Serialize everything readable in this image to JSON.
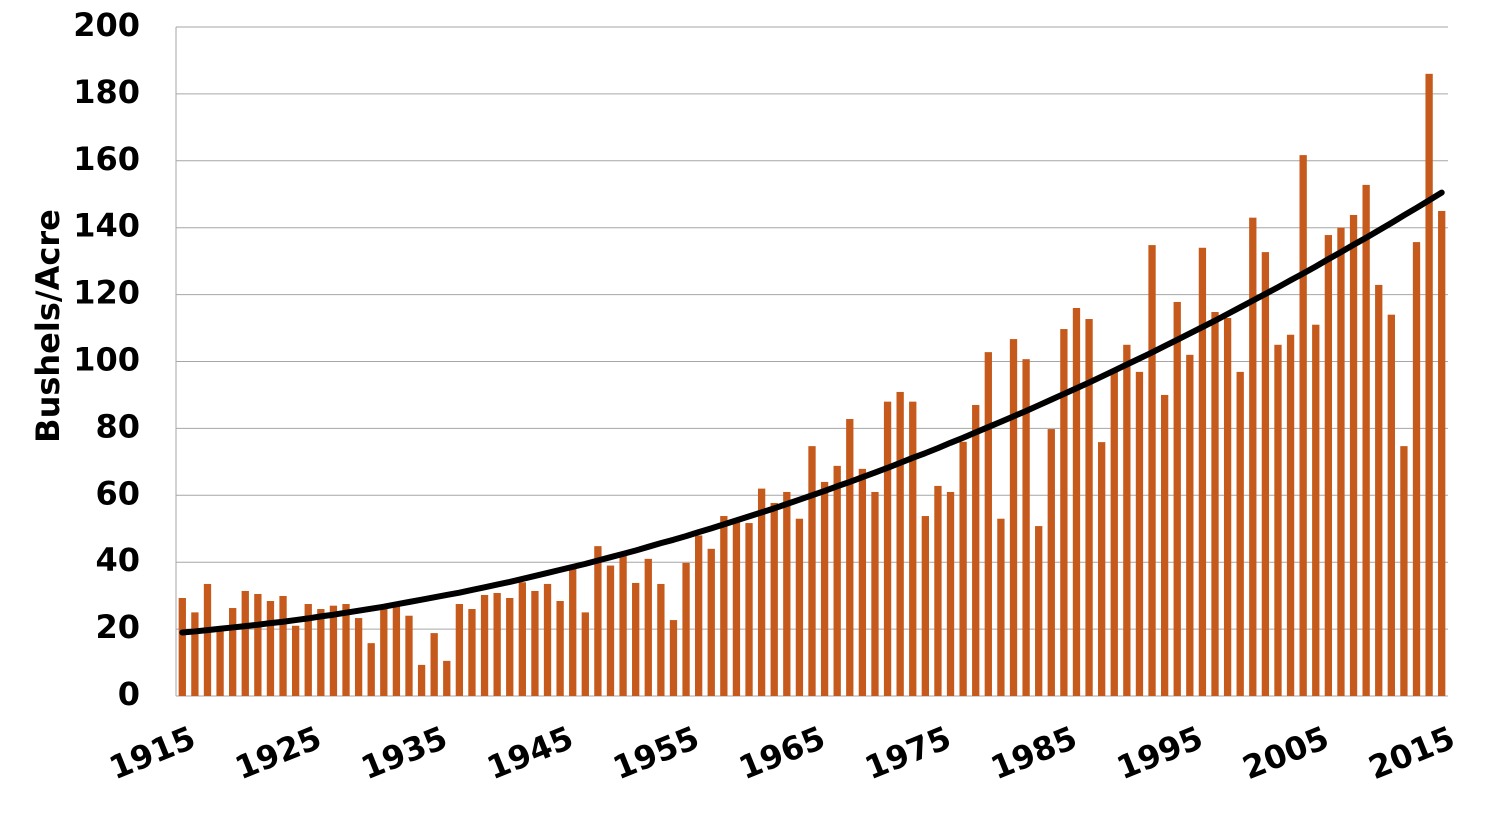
{
  "chart_data": {
    "type": "bar",
    "y_label": "Bushels/Acre",
    "categories": [
      "1915",
      null,
      null,
      null,
      null,
      null,
      null,
      null,
      null,
      null,
      "1925",
      null,
      null,
      null,
      null,
      null,
      null,
      null,
      null,
      null,
      "1935",
      null,
      null,
      null,
      null,
      null,
      null,
      null,
      null,
      null,
      "1945",
      null,
      null,
      null,
      null,
      null,
      null,
      null,
      null,
      null,
      "1955",
      null,
      null,
      null,
      null,
      null,
      null,
      null,
      null,
      null,
      "1965",
      null,
      null,
      null,
      null,
      null,
      null,
      null,
      null,
      null,
      "1975",
      null,
      null,
      null,
      null,
      null,
      null,
      null,
      null,
      null,
      "1985",
      null,
      null,
      null,
      null,
      null,
      null,
      null,
      null,
      null,
      "1995",
      null,
      null,
      null,
      null,
      null,
      null,
      null,
      null,
      null,
      "2005",
      null,
      null,
      null,
      null,
      null,
      null,
      null,
      null,
      null,
      "2015"
    ],
    "series": [
      {
        "type": "bar",
        "color": "#c55a1c",
        "values": [
          29.3,
          25,
          33.5,
          20,
          26.3,
          31.4,
          30.5,
          28.4,
          29.9,
          21,
          27.5,
          26,
          27,
          27.5,
          23.3,
          15.8,
          26.6,
          27,
          24,
          9.3,
          18.8,
          10.5,
          27.5,
          26,
          30.2,
          30.8,
          29.3,
          34,
          31.4,
          33.5,
          28.4,
          38,
          25,
          44.8,
          39,
          43,
          33.8,
          41,
          33.5,
          22.7,
          39.8,
          48,
          44,
          53.8,
          52,
          51.7,
          62,
          57.7,
          61,
          53,
          74.7,
          64,
          68.8,
          82.8,
          67.9,
          61,
          88,
          90.9,
          88,
          53.8,
          62.8,
          61,
          76,
          87,
          102.8,
          53,
          106.7,
          100.7,
          50.8,
          79.8,
          109.7,
          116,
          112.7,
          75.9,
          97,
          105,
          96.9,
          134.8,
          90,
          117.8,
          102,
          134,
          114.8,
          113,
          96.9,
          143,
          132.7,
          105,
          108,
          161.7,
          111,
          137.8,
          140,
          143.8,
          152.8,
          122.9,
          114,
          74.7,
          135.7,
          186,
          145
        ]
      },
      {
        "type": "line",
        "color": "#000000",
        "values": [
          19.0,
          19.3,
          19.7,
          20.1,
          20.5,
          20.9,
          21.3,
          21.8,
          22.2,
          22.7,
          23.2,
          23.8,
          24.3,
          24.9,
          25.5,
          26.1,
          26.7,
          27.4,
          28.1,
          28.8,
          29.5,
          30.2,
          30.9,
          31.7,
          32.5,
          33.3,
          34.1,
          35.0,
          35.9,
          36.8,
          37.7,
          38.6,
          39.5,
          40.5,
          41.5,
          42.5,
          43.5,
          44.6,
          45.7,
          46.7,
          47.8,
          49.0,
          50.1,
          51.3,
          52.5,
          53.7,
          54.9,
          56.1,
          57.4,
          58.7,
          60.0,
          61.3,
          62.7,
          64.0,
          65.4,
          66.8,
          68.2,
          69.7,
          71.2,
          72.6,
          74.1,
          75.7,
          77.2,
          78.8,
          80.4,
          82.0,
          83.6,
          85.2,
          86.9,
          88.6,
          90.3,
          92.0,
          93.7,
          95.5,
          97.3,
          99.1,
          100.9,
          102.7,
          104.6,
          106.5,
          108.4,
          110.3,
          112.2,
          114.2,
          116.2,
          118.2,
          120.2,
          122.2,
          124.3,
          126.3,
          128.4,
          130.6,
          132.7,
          134.9,
          137.0,
          139.2,
          141.4,
          143.7,
          145.9,
          148.2,
          150.5
        ]
      }
    ],
    "ylim": [
      0,
      200
    ],
    "yticks": [
      0,
      20,
      40,
      60,
      80,
      100,
      120,
      140,
      160,
      180,
      200
    ],
    "grid": true
  }
}
